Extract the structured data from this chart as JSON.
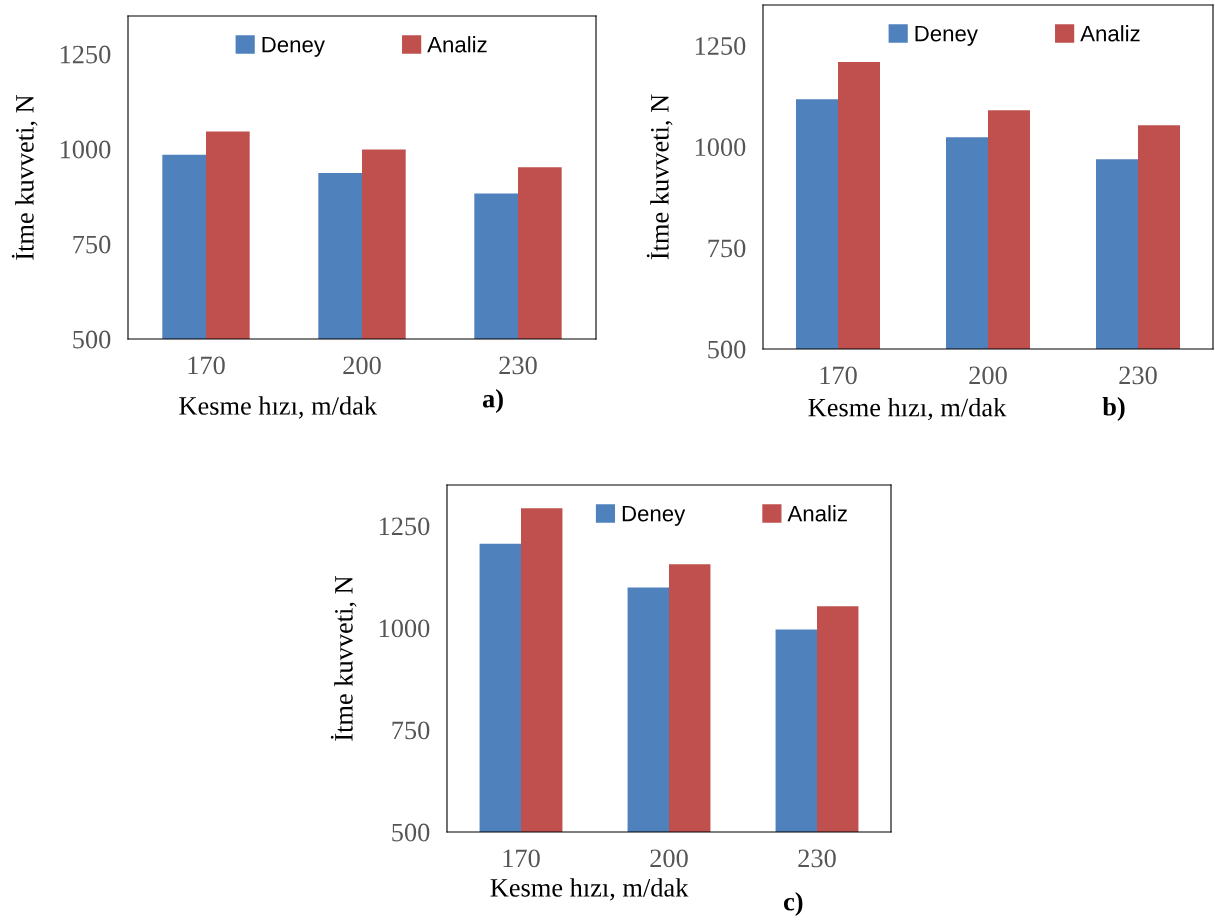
{
  "chart_data": [
    {
      "type": "bar",
      "categories": [
        "170",
        "200",
        "230"
      ],
      "xlabel": "Kesme hızı, m/dak",
      "ylabel": "İtme kuvveti, N",
      "annotations": [
        "a)"
      ],
      "series": [
        {
          "name": "Deney",
          "color": "#4f81bd",
          "values": [
            985,
            937,
            883
          ]
        },
        {
          "name": "Analiz",
          "color": "#c0504d",
          "values": [
            1046,
            999,
            952
          ]
        }
      ],
      "ylim": [
        500,
        1350
      ],
      "yticks": [
        500,
        750,
        1000,
        1250
      ],
      "grid": false,
      "legend": "top"
    },
    {
      "type": "bar",
      "categories": [
        "170",
        "200",
        "230"
      ],
      "xlabel": "Kesme hızı, m/dak",
      "ylabel": "İtme kuvveti, N",
      "annotations": [
        "b)"
      ],
      "series": [
        {
          "name": "Deney",
          "color": "#4f81bd",
          "values": [
            1117,
            1023,
            969
          ]
        },
        {
          "name": "Analiz",
          "color": "#c0504d",
          "values": [
            1209,
            1090,
            1053
          ]
        }
      ],
      "ylim": [
        500,
        1350
      ],
      "yticks": [
        500,
        750,
        1000,
        1250
      ],
      "grid": false,
      "legend": "top"
    },
    {
      "type": "bar",
      "categories": [
        "170",
        "200",
        "230"
      ],
      "xlabel": "Kesme hızı, m/dak",
      "ylabel": "İtme kuvveti, N",
      "annotations": [
        "c)"
      ],
      "series": [
        {
          "name": "Deney",
          "color": "#4f81bd",
          "values": [
            1206,
            1099,
            996
          ]
        },
        {
          "name": "Analiz",
          "color": "#c0504d",
          "values": [
            1293,
            1156,
            1053
          ]
        }
      ],
      "ylim": [
        500,
        1350
      ],
      "yticks": [
        500,
        750,
        1000,
        1250
      ],
      "grid": false,
      "legend": "top"
    }
  ]
}
